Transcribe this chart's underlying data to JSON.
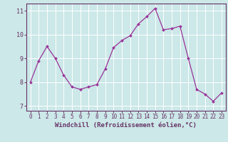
{
  "x": [
    0,
    1,
    2,
    3,
    4,
    5,
    6,
    7,
    8,
    9,
    10,
    11,
    12,
    13,
    14,
    15,
    16,
    17,
    18,
    19,
    20,
    21,
    22,
    23
  ],
  "y": [
    8.0,
    8.9,
    9.5,
    9.0,
    8.3,
    7.8,
    7.7,
    7.8,
    7.9,
    8.55,
    9.45,
    9.75,
    9.95,
    10.45,
    10.75,
    11.1,
    10.2,
    10.25,
    10.35,
    9.0,
    7.7,
    7.5,
    7.2,
    7.55
  ],
  "line_color": "#993399",
  "marker": "D",
  "marker_size": 2.0,
  "bg_color": "#cce8e8",
  "grid_color": "#ffffff",
  "axis_color": "#663366",
  "tick_color": "#663366",
  "xlabel": "Windchill (Refroidissement éolien,°C)",
  "xlim": [
    -0.5,
    23.5
  ],
  "ylim": [
    6.8,
    11.3
  ],
  "yticks": [
    7,
    8,
    9,
    10,
    11
  ],
  "xticks": [
    0,
    1,
    2,
    3,
    4,
    5,
    6,
    7,
    8,
    9,
    10,
    11,
    12,
    13,
    14,
    15,
    16,
    17,
    18,
    19,
    20,
    21,
    22,
    23
  ],
  "tick_fontsize": 5.5,
  "label_fontsize": 6.5
}
